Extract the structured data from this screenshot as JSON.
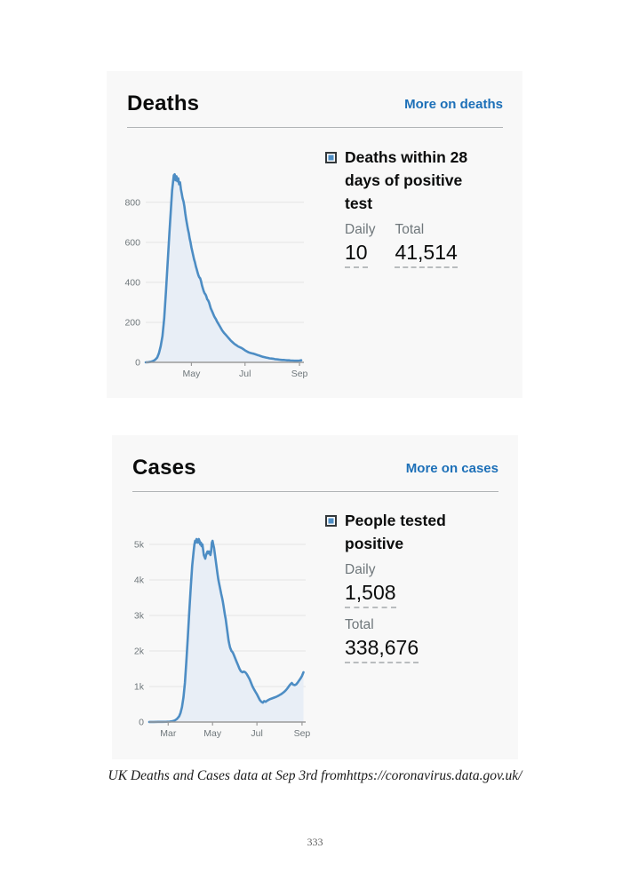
{
  "page": {
    "caption": "UK Deaths and Cases data at Sep 3rd fromhttps://coronavirus.data.gov.uk/",
    "page_number": "333"
  },
  "colors": {
    "link_blue": "#1d70b8",
    "line_blue": "#4d8dc4",
    "area_fill": "#e8eef6",
    "card_background": "#f8f8f8",
    "divider": "#b1b4b6",
    "muted_text": "#6f777b",
    "heading_text": "#0b0c0c",
    "grid": "#e4e4e4",
    "axis": "#9a9a9a"
  },
  "cards": [
    {
      "title": "Deaths",
      "link_label": "More on deaths",
      "stat": {
        "title": "Deaths within 28 days of positive test",
        "metrics": [
          {
            "label": "Daily",
            "value": "10"
          },
          {
            "label": "Total",
            "value": "41,514"
          }
        ]
      }
    },
    {
      "title": "Cases",
      "link_label": "More on cases",
      "stat": {
        "title": "People tested positive",
        "metrics": [
          {
            "label": "Daily",
            "value": "1,508"
          },
          {
            "label": "Total",
            "value": "338,676"
          }
        ]
      }
    }
  ],
  "chart_data": [
    {
      "type": "area",
      "title": "Deaths within 28 days of positive test",
      "xlabel": "",
      "ylabel": "",
      "x_unit": "days since 1 Mar 2020",
      "x_domain": [
        9,
        189
      ],
      "ylim": [
        0,
        950
      ],
      "grid": true,
      "legend_position": "right",
      "line_color": "#4d8dc4",
      "fill_color": "#e8eef6",
      "yticks": [
        {
          "value": 0,
          "label": "0"
        },
        {
          "value": 200,
          "label": "200"
        },
        {
          "value": 400,
          "label": "400"
        },
        {
          "value": 600,
          "label": "600"
        },
        {
          "value": 800,
          "label": "800"
        }
      ],
      "xticks": [
        {
          "day": 61,
          "label": "May"
        },
        {
          "day": 122,
          "label": "Jul"
        },
        {
          "day": 184,
          "label": "Sep"
        }
      ],
      "points": [
        [
          9,
          0
        ],
        [
          12,
          1
        ],
        [
          15,
          3
        ],
        [
          18,
          8
        ],
        [
          20,
          14
        ],
        [
          22,
          24
        ],
        [
          24,
          45
        ],
        [
          26,
          80
        ],
        [
          28,
          130
        ],
        [
          30,
          220
        ],
        [
          32,
          350
        ],
        [
          34,
          500
        ],
        [
          36,
          650
        ],
        [
          38,
          790
        ],
        [
          39,
          860
        ],
        [
          40,
          900
        ],
        [
          41,
          935
        ],
        [
          42,
          940
        ],
        [
          43,
          910
        ],
        [
          44,
          930
        ],
        [
          45,
          905
        ],
        [
          46,
          920
        ],
        [
          47,
          890
        ],
        [
          48,
          900
        ],
        [
          49,
          865
        ],
        [
          50,
          845
        ],
        [
          51,
          820
        ],
        [
          52,
          805
        ],
        [
          53,
          780
        ],
        [
          54,
          745
        ],
        [
          55,
          715
        ],
        [
          56,
          690
        ],
        [
          57,
          665
        ],
        [
          58,
          645
        ],
        [
          59,
          620
        ],
        [
          60,
          600
        ],
        [
          61,
          575
        ],
        [
          62,
          555
        ],
        [
          63,
          535
        ],
        [
          64,
          515
        ],
        [
          65,
          500
        ],
        [
          66,
          480
        ],
        [
          67,
          465
        ],
        [
          68,
          450
        ],
        [
          69,
          435
        ],
        [
          70,
          425
        ],
        [
          71,
          420
        ],
        [
          72,
          405
        ],
        [
          73,
          385
        ],
        [
          74,
          370
        ],
        [
          75,
          355
        ],
        [
          76,
          345
        ],
        [
          77,
          340
        ],
        [
          78,
          330
        ],
        [
          79,
          315
        ],
        [
          80,
          310
        ],
        [
          81,
          300
        ],
        [
          82,
          285
        ],
        [
          83,
          270
        ],
        [
          84,
          260
        ],
        [
          85,
          250
        ],
        [
          86,
          240
        ],
        [
          87,
          230
        ],
        [
          88,
          222
        ],
        [
          89,
          215
        ],
        [
          90,
          205
        ],
        [
          92,
          190
        ],
        [
          94,
          175
        ],
        [
          96,
          160
        ],
        [
          98,
          148
        ],
        [
          100,
          138
        ],
        [
          102,
          128
        ],
        [
          104,
          118
        ],
        [
          106,
          108
        ],
        [
          108,
          100
        ],
        [
          110,
          92
        ],
        [
          112,
          86
        ],
        [
          114,
          80
        ],
        [
          116,
          76
        ],
        [
          118,
          72
        ],
        [
          120,
          66
        ],
        [
          122,
          60
        ],
        [
          124,
          55
        ],
        [
          126,
          50
        ],
        [
          128,
          47
        ],
        [
          130,
          45
        ],
        [
          132,
          43
        ],
        [
          134,
          40
        ],
        [
          136,
          37
        ],
        [
          138,
          34
        ],
        [
          140,
          31
        ],
        [
          142,
          28
        ],
        [
          144,
          26
        ],
        [
          146,
          24
        ],
        [
          148,
          22
        ],
        [
          150,
          20
        ],
        [
          152,
          19
        ],
        [
          154,
          18
        ],
        [
          156,
          16
        ],
        [
          158,
          15
        ],
        [
          160,
          14
        ],
        [
          162,
          13
        ],
        [
          164,
          12
        ],
        [
          166,
          12
        ],
        [
          168,
          11
        ],
        [
          170,
          10
        ],
        [
          172,
          10
        ],
        [
          174,
          9
        ],
        [
          176,
          9
        ],
        [
          178,
          8
        ],
        [
          180,
          8
        ],
        [
          182,
          8
        ],
        [
          184,
          9
        ],
        [
          186,
          10
        ]
      ]
    },
    {
      "type": "area",
      "title": "People tested positive",
      "xlabel": "",
      "ylabel": "",
      "x_unit": "days since 1 Mar 2020",
      "x_domain": [
        -26,
        189
      ],
      "ylim": [
        0,
        5350
      ],
      "grid": true,
      "legend_position": "right",
      "line_color": "#4d8dc4",
      "fill_color": "#e8eef6",
      "yticks": [
        {
          "value": 0,
          "label": "0"
        },
        {
          "value": 1000,
          "label": "1k"
        },
        {
          "value": 2000,
          "label": "2k"
        },
        {
          "value": 3000,
          "label": "3k"
        },
        {
          "value": 4000,
          "label": "4k"
        },
        {
          "value": 5000,
          "label": "5k"
        }
      ],
      "xticks": [
        {
          "day": 0,
          "label": "Mar"
        },
        {
          "day": 61,
          "label": "May"
        },
        {
          "day": 122,
          "label": "Jul"
        },
        {
          "day": 184,
          "label": "Sep"
        }
      ],
      "points": [
        [
          -26,
          2
        ],
        [
          -20,
          3
        ],
        [
          -14,
          4
        ],
        [
          -8,
          5
        ],
        [
          -2,
          8
        ],
        [
          2,
          12
        ],
        [
          6,
          25
        ],
        [
          9,
          45
        ],
        [
          12,
          85
        ],
        [
          15,
          160
        ],
        [
          17,
          260
        ],
        [
          19,
          420
        ],
        [
          21,
          700
        ],
        [
          23,
          1100
        ],
        [
          25,
          1700
        ],
        [
          27,
          2400
        ],
        [
          29,
          3100
        ],
        [
          31,
          3800
        ],
        [
          33,
          4400
        ],
        [
          35,
          4800
        ],
        [
          36,
          5000
        ],
        [
          37,
          5100
        ],
        [
          38,
          5050
        ],
        [
          39,
          5150
        ],
        [
          40,
          5100
        ],
        [
          41,
          5050
        ],
        [
          42,
          5150
        ],
        [
          43,
          5100
        ],
        [
          44,
          5000
        ],
        [
          45,
          5050
        ],
        [
          46,
          4950
        ],
        [
          47,
          5000
        ],
        [
          48,
          4850
        ],
        [
          49,
          4700
        ],
        [
          50,
          4650
        ],
        [
          51,
          4600
        ],
        [
          52,
          4700
        ],
        [
          53,
          4750
        ],
        [
          54,
          4800
        ],
        [
          55,
          4750
        ],
        [
          56,
          4800
        ],
        [
          57,
          4750
        ],
        [
          58,
          4700
        ],
        [
          59,
          4800
        ],
        [
          60,
          5050
        ],
        [
          61,
          5100
        ],
        [
          62,
          5000
        ],
        [
          63,
          4900
        ],
        [
          64,
          4750
        ],
        [
          65,
          4600
        ],
        [
          66,
          4450
        ],
        [
          67,
          4300
        ],
        [
          68,
          4150
        ],
        [
          69,
          4000
        ],
        [
          70,
          3900
        ],
        [
          71,
          3800
        ],
        [
          72,
          3700
        ],
        [
          73,
          3600
        ],
        [
          74,
          3500
        ],
        [
          75,
          3400
        ],
        [
          76,
          3280
        ],
        [
          77,
          3150
        ],
        [
          78,
          3020
        ],
        [
          79,
          2900
        ],
        [
          80,
          2750
        ],
        [
          81,
          2600
        ],
        [
          82,
          2450
        ],
        [
          83,
          2300
        ],
        [
          84,
          2200
        ],
        [
          85,
          2100
        ],
        [
          86,
          2050
        ],
        [
          87,
          2000
        ],
        [
          88,
          1980
        ],
        [
          89,
          1950
        ],
        [
          90,
          1900
        ],
        [
          92,
          1800
        ],
        [
          94,
          1700
        ],
        [
          96,
          1600
        ],
        [
          98,
          1500
        ],
        [
          100,
          1430
        ],
        [
          102,
          1400
        ],
        [
          104,
          1420
        ],
        [
          106,
          1400
        ],
        [
          108,
          1350
        ],
        [
          110,
          1280
        ],
        [
          112,
          1200
        ],
        [
          114,
          1100
        ],
        [
          116,
          1000
        ],
        [
          118,
          920
        ],
        [
          120,
          850
        ],
        [
          122,
          780
        ],
        [
          124,
          700
        ],
        [
          126,
          620
        ],
        [
          128,
          570
        ],
        [
          130,
          545
        ],
        [
          132,
          590
        ],
        [
          134,
          570
        ],
        [
          136,
          600
        ],
        [
          138,
          625
        ],
        [
          140,
          645
        ],
        [
          142,
          660
        ],
        [
          144,
          675
        ],
        [
          146,
          690
        ],
        [
          148,
          705
        ],
        [
          150,
          725
        ],
        [
          152,
          745
        ],
        [
          154,
          770
        ],
        [
          156,
          795
        ],
        [
          158,
          825
        ],
        [
          160,
          860
        ],
        [
          162,
          900
        ],
        [
          164,
          950
        ],
        [
          166,
          1010
        ],
        [
          168,
          1060
        ],
        [
          170,
          1100
        ],
        [
          171,
          1070
        ],
        [
          172,
          1050
        ],
        [
          174,
          1040
        ],
        [
          176,
          1060
        ],
        [
          178,
          1110
        ],
        [
          180,
          1170
        ],
        [
          182,
          1230
        ],
        [
          184,
          1300
        ],
        [
          185,
          1350
        ],
        [
          186,
          1400
        ]
      ]
    }
  ]
}
